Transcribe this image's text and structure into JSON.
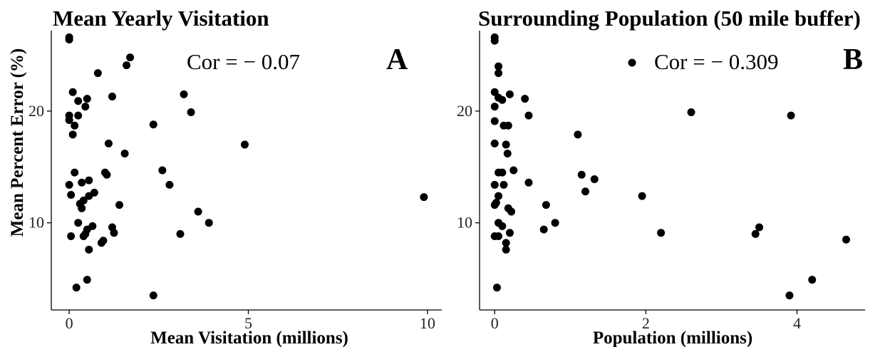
{
  "y_axis_title": "Mean Percent Error (%)",
  "chart_data": [
    {
      "type": "scatter",
      "title": "Mean Yearly Visitation",
      "xlabel": "Mean Visitation (millions)",
      "ylabel": "Mean Percent Error (%)",
      "xlim": [
        -0.5,
        10.4
      ],
      "ylim": [
        2.2,
        27.2
      ],
      "xticks": [
        0,
        5,
        10
      ],
      "yticks": [
        10,
        20
      ],
      "correlation_label": "Cor = − 0.07",
      "panel_letter": "A",
      "points": [
        {
          "x": 0.0,
          "y": 26.6
        },
        {
          "x": 0.0,
          "y": 26.4
        },
        {
          "x": 0.0,
          "y": 19.6
        },
        {
          "x": 0.0,
          "y": 19.2
        },
        {
          "x": 0.0,
          "y": 13.4
        },
        {
          "x": 0.05,
          "y": 12.5
        },
        {
          "x": 0.05,
          "y": 8.8
        },
        {
          "x": 0.1,
          "y": 21.7
        },
        {
          "x": 0.1,
          "y": 17.9
        },
        {
          "x": 0.15,
          "y": 18.7
        },
        {
          "x": 0.15,
          "y": 14.5
        },
        {
          "x": 0.2,
          "y": 4.2
        },
        {
          "x": 0.25,
          "y": 20.9
        },
        {
          "x": 0.25,
          "y": 19.6
        },
        {
          "x": 0.25,
          "y": 10.0
        },
        {
          "x": 0.3,
          "y": 11.7
        },
        {
          "x": 0.35,
          "y": 13.6
        },
        {
          "x": 0.35,
          "y": 11.3
        },
        {
          "x": 0.4,
          "y": 8.8
        },
        {
          "x": 0.4,
          "y": 12.0
        },
        {
          "x": 0.45,
          "y": 20.4
        },
        {
          "x": 0.45,
          "y": 9.0
        },
        {
          "x": 0.5,
          "y": 21.1
        },
        {
          "x": 0.5,
          "y": 9.4
        },
        {
          "x": 0.5,
          "y": 4.9
        },
        {
          "x": 0.55,
          "y": 13.8
        },
        {
          "x": 0.55,
          "y": 12.4
        },
        {
          "x": 0.55,
          "y": 7.6
        },
        {
          "x": 0.65,
          "y": 9.7
        },
        {
          "x": 0.7,
          "y": 12.7
        },
        {
          "x": 0.8,
          "y": 23.4
        },
        {
          "x": 0.9,
          "y": 8.2
        },
        {
          "x": 0.95,
          "y": 8.4
        },
        {
          "x": 1.0,
          "y": 14.5
        },
        {
          "x": 1.05,
          "y": 14.3
        },
        {
          "x": 1.1,
          "y": 17.1
        },
        {
          "x": 1.2,
          "y": 21.3
        },
        {
          "x": 1.2,
          "y": 9.6
        },
        {
          "x": 1.25,
          "y": 9.1
        },
        {
          "x": 1.4,
          "y": 11.6
        },
        {
          "x": 1.55,
          "y": 16.2
        },
        {
          "x": 1.6,
          "y": 24.1
        },
        {
          "x": 1.7,
          "y": 24.8
        },
        {
          "x": 2.35,
          "y": 18.8
        },
        {
          "x": 2.35,
          "y": 3.5
        },
        {
          "x": 2.6,
          "y": 14.7
        },
        {
          "x": 2.8,
          "y": 13.4
        },
        {
          "x": 3.1,
          "y": 9.0
        },
        {
          "x": 3.2,
          "y": 21.5
        },
        {
          "x": 3.4,
          "y": 19.9
        },
        {
          "x": 3.6,
          "y": 11.0
        },
        {
          "x": 3.9,
          "y": 10.0
        },
        {
          "x": 4.9,
          "y": 17.0
        },
        {
          "x": 9.9,
          "y": 12.3
        }
      ]
    },
    {
      "type": "scatter",
      "title": "Surrounding Population (50 mile buffer)",
      "xlabel": "Population (millions)",
      "ylabel": "",
      "xlim": [
        -0.2,
        4.9
      ],
      "ylim": [
        2.2,
        27.2
      ],
      "xticks": [
        0,
        2,
        4
      ],
      "yticks": [
        10,
        20
      ],
      "correlation_label": "Cor = − 0.309",
      "panel_letter": "B",
      "points": [
        {
          "x": 0.0,
          "y": 26.6
        },
        {
          "x": 0.0,
          "y": 26.3
        },
        {
          "x": 0.05,
          "y": 23.4
        },
        {
          "x": 0.05,
          "y": 24.0
        },
        {
          "x": 0.0,
          "y": 21.7
        },
        {
          "x": 0.05,
          "y": 21.2
        },
        {
          "x": 0.0,
          "y": 20.4
        },
        {
          "x": 0.0,
          "y": 19.1
        },
        {
          "x": 0.0,
          "y": 17.1
        },
        {
          "x": 0.05,
          "y": 14.5
        },
        {
          "x": 0.0,
          "y": 13.4
        },
        {
          "x": 0.05,
          "y": 12.4
        },
        {
          "x": 0.02,
          "y": 11.8
        },
        {
          "x": 0.0,
          "y": 11.6
        },
        {
          "x": 0.05,
          "y": 10.0
        },
        {
          "x": 0.0,
          "y": 8.8
        },
        {
          "x": 0.05,
          "y": 8.8
        },
        {
          "x": 0.03,
          "y": 4.2
        },
        {
          "x": 0.1,
          "y": 21.0
        },
        {
          "x": 0.12,
          "y": 18.7
        },
        {
          "x": 0.1,
          "y": 14.5
        },
        {
          "x": 0.12,
          "y": 13.4
        },
        {
          "x": 0.1,
          "y": 9.7
        },
        {
          "x": 0.15,
          "y": 8.2
        },
        {
          "x": 0.15,
          "y": 7.6
        },
        {
          "x": 0.15,
          "y": 17.0
        },
        {
          "x": 0.17,
          "y": 16.2
        },
        {
          "x": 0.18,
          "y": 18.7
        },
        {
          "x": 0.2,
          "y": 21.5
        },
        {
          "x": 0.18,
          "y": 11.3
        },
        {
          "x": 0.22,
          "y": 11.0
        },
        {
          "x": 0.2,
          "y": 9.1
        },
        {
          "x": 0.25,
          "y": 14.7
        },
        {
          "x": 0.4,
          "y": 21.1
        },
        {
          "x": 0.45,
          "y": 19.6
        },
        {
          "x": 0.45,
          "y": 13.6
        },
        {
          "x": 0.65,
          "y": 9.4
        },
        {
          "x": 0.68,
          "y": 11.6
        },
        {
          "x": 0.8,
          "y": 10.0
        },
        {
          "x": 1.1,
          "y": 17.9
        },
        {
          "x": 1.15,
          "y": 14.3
        },
        {
          "x": 1.2,
          "y": 12.8
        },
        {
          "x": 1.32,
          "y": 13.9
        },
        {
          "x": 1.95,
          "y": 12.4
        },
        {
          "x": 2.2,
          "y": 9.1
        },
        {
          "x": 2.6,
          "y": 19.9
        },
        {
          "x": 3.45,
          "y": 9.0
        },
        {
          "x": 3.5,
          "y": 9.6
        },
        {
          "x": 3.9,
          "y": 3.5
        },
        {
          "x": 3.92,
          "y": 19.6
        },
        {
          "x": 4.2,
          "y": 4.9
        },
        {
          "x": 4.65,
          "y": 8.5
        }
      ]
    }
  ]
}
